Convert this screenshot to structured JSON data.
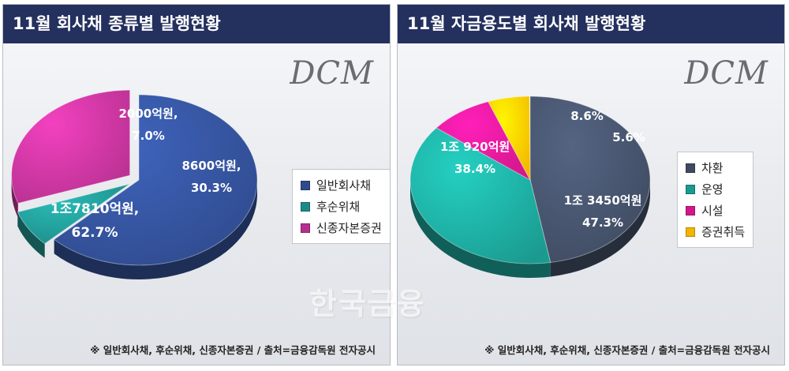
{
  "watermark": "한국금융",
  "charts": [
    {
      "header": "11월  회사채 종류별 발행현황",
      "logo": "DCM",
      "footnote": "※ 일반회사채, 후순위채, 신종자본증권 / 출처=금융감독원 전자공시",
      "legend_position": "right"
    },
    {
      "header": "11월 자금용도별 회사채 발행현황",
      "logo": "DCM",
      "footnote": "※ 일반회사채, 후순위채, 신종자본증권 / 출처=금융감독원 전자공시",
      "legend_position": "right"
    }
  ],
  "chart_data": [
    {
      "type": "pie",
      "title": "11월  회사채 종류별 발행현황",
      "unit": "억원",
      "slices": [
        {
          "name": "일반회사채",
          "amount_label": "1조7810억원,",
          "percent_label": "62.7%",
          "percent": 62.7,
          "color": "#2f4a8c",
          "exploded": false
        },
        {
          "name": "후순위채",
          "amount_label": "2000억원,",
          "percent_label": "7.0%",
          "percent": 7.0,
          "color": "#1e8a87",
          "exploded": true
        },
        {
          "name": "신종자본증권",
          "amount_label": "8600억원,",
          "percent_label": "30.3%",
          "percent": 30.3,
          "color": "#b4308e",
          "exploded": true
        }
      ]
    },
    {
      "type": "pie",
      "title": "11월 자금용도별 회사채 발행현황",
      "unit": "억원",
      "slices": [
        {
          "name": "차환",
          "amount_label": "1조 3450억원",
          "percent_label": "47.3%",
          "percent": 47.3,
          "color": "#3e4a60",
          "exploded": false
        },
        {
          "name": "운영",
          "amount_label": "1조 920억원",
          "percent_label": "38.4%",
          "percent": 38.4,
          "color": "#1b9a90",
          "exploded": false
        },
        {
          "name": "시설",
          "amount_label": "",
          "percent_label": "8.6%",
          "percent": 8.6,
          "color": "#d3178a",
          "exploded": false
        },
        {
          "name": "증권취득",
          "amount_label": "",
          "percent_label": "5.6%",
          "percent": 5.6,
          "color": "#f2b600",
          "exploded": false
        }
      ]
    }
  ]
}
